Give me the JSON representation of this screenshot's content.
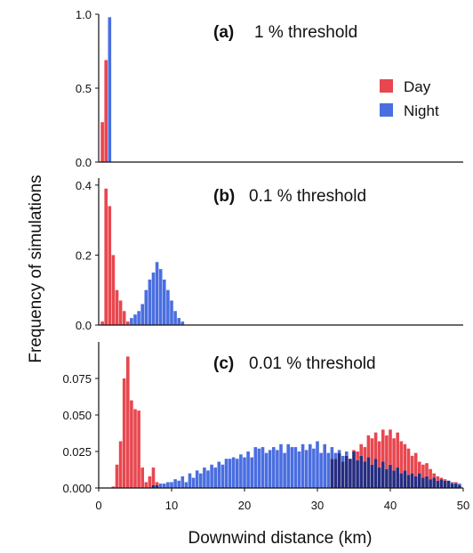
{
  "chart_data": {
    "type": "bar",
    "shared_xlabel": "Downwind distance (km)",
    "shared_ylabel": "Frequency of simulations",
    "xlim": [
      0,
      50
    ],
    "xticks": [
      0,
      10,
      20,
      30,
      40,
      50
    ],
    "legend": {
      "placement": "top-right of panel (a)",
      "entries": [
        {
          "name": "Day",
          "color": "#e8474f"
        },
        {
          "name": "Night",
          "color": "#4a6ee0"
        }
      ]
    },
    "colors": {
      "day": "#e8474f",
      "night": "#4a6ee0",
      "overlap": "#262d80"
    },
    "panels": [
      {
        "label": "(a)",
        "title": "1 % threshold",
        "ylim": [
          0,
          1.0
        ],
        "yticks": [
          {
            "value": 0.0,
            "label": "0.0"
          },
          {
            "value": 0.5,
            "label": "0.5"
          },
          {
            "value": 1.0,
            "label": "1.0"
          }
        ],
        "series": [
          {
            "name": "Day",
            "x": [
              0.5,
              1.0
            ],
            "y": [
              0.27,
              0.69
            ]
          },
          {
            "name": "Night",
            "x": [
              1.5
            ],
            "y": [
              0.98
            ]
          }
        ]
      },
      {
        "label": "(b)",
        "title": "0.1 % threshold",
        "ylim": [
          0,
          0.42
        ],
        "yticks": [
          {
            "value": 0.0,
            "label": "0.0"
          },
          {
            "value": 0.2,
            "label": "0.2"
          },
          {
            "value": 0.4,
            "label": "0.4"
          }
        ],
        "series": [
          {
            "name": "Day",
            "x": [
              0.5,
              1.0,
              1.5,
              2.0,
              2.5,
              3.0,
              3.5,
              4.0
            ],
            "y": [
              0.01,
              0.39,
              0.34,
              0.2,
              0.1,
              0.07,
              0.04,
              0.01
            ]
          },
          {
            "name": "Night",
            "x": [
              4.5,
              5.0,
              5.5,
              6.0,
              6.5,
              7.0,
              7.5,
              8.0,
              8.5,
              9.0,
              9.5,
              10.0,
              10.5,
              11.0,
              11.5
            ],
            "y": [
              0.02,
              0.03,
              0.04,
              0.06,
              0.1,
              0.13,
              0.15,
              0.18,
              0.16,
              0.13,
              0.1,
              0.07,
              0.04,
              0.02,
              0.01
            ]
          }
        ]
      },
      {
        "label": "(c)",
        "title": "0.01 % threshold",
        "ylim": [
          0,
          0.1
        ],
        "yticks": [
          {
            "value": 0.0,
            "label": "0.000"
          },
          {
            "value": 0.025,
            "label": "0.025"
          },
          {
            "value": 0.05,
            "label": "0.050"
          },
          {
            "value": 0.075,
            "label": "0.075"
          }
        ],
        "day": {
          "x": [
            2.0,
            2.5,
            3.0,
            3.5,
            4.0,
            4.5,
            5.0,
            5.5,
            6.0,
            6.5,
            7.0,
            7.5,
            8.0,
            32.0,
            32.5,
            33.0,
            33.5,
            34.0,
            34.5,
            35.0,
            35.5,
            36.0,
            36.5,
            37.0,
            37.5,
            38.0,
            38.5,
            39.0,
            39.5,
            40.0,
            40.5,
            41.0,
            41.5,
            42.0,
            42.5,
            43.0,
            43.5,
            44.0,
            44.5,
            45.0,
            45.5,
            46.0,
            46.5,
            47.0,
            47.5,
            48.0,
            48.5,
            49.0,
            49.5
          ],
          "y": [
            0.001,
            0.016,
            0.032,
            0.075,
            0.09,
            0.06,
            0.054,
            0.053,
            0.014,
            0.004,
            0.008,
            0.014,
            0.004,
            0.02,
            0.02,
            0.024,
            0.018,
            0.022,
            0.02,
            0.026,
            0.025,
            0.03,
            0.028,
            0.036,
            0.034,
            0.038,
            0.032,
            0.04,
            0.036,
            0.04,
            0.034,
            0.038,
            0.032,
            0.03,
            0.027,
            0.022,
            0.024,
            0.018,
            0.016,
            0.017,
            0.013,
            0.01,
            0.008,
            0.007,
            0.006,
            0.005,
            0.003,
            0.004,
            0.002
          ]
        },
        "night": {
          "x": [
            7.5,
            8.0,
            8.5,
            9.0,
            9.5,
            10.0,
            10.5,
            11.0,
            11.5,
            12.0,
            12.5,
            13.0,
            13.5,
            14.0,
            14.5,
            15.0,
            15.5,
            16.0,
            16.5,
            17.0,
            17.5,
            18.0,
            18.5,
            19.0,
            19.5,
            20.0,
            20.5,
            21.0,
            21.5,
            22.0,
            22.5,
            23.0,
            23.5,
            24.0,
            24.5,
            25.0,
            25.5,
            26.0,
            26.5,
            27.0,
            27.5,
            28.0,
            28.5,
            29.0,
            29.5,
            30.0,
            30.5,
            31.0,
            31.5,
            32.0,
            32.5,
            33.0,
            33.5,
            34.0,
            34.5,
            35.0,
            35.5,
            36.0,
            36.5,
            37.0,
            37.5,
            38.0,
            38.5,
            39.0,
            39.5,
            40.0,
            40.5,
            41.0,
            41.5,
            42.0,
            42.5,
            43.0,
            43.5,
            44.0,
            44.5,
            45.0,
            45.5,
            46.0,
            46.5,
            47.0,
            47.5,
            48.0,
            48.5,
            49.0,
            49.5
          ],
          "y": [
            0.002,
            0.002,
            0.003,
            0.003,
            0.004,
            0.004,
            0.006,
            0.005,
            0.008,
            0.004,
            0.01,
            0.007,
            0.012,
            0.01,
            0.014,
            0.012,
            0.016,
            0.014,
            0.018,
            0.016,
            0.02,
            0.02,
            0.021,
            0.02,
            0.023,
            0.021,
            0.025,
            0.021,
            0.028,
            0.027,
            0.028,
            0.024,
            0.026,
            0.028,
            0.026,
            0.03,
            0.024,
            0.03,
            0.028,
            0.028,
            0.025,
            0.03,
            0.026,
            0.03,
            0.027,
            0.032,
            0.024,
            0.03,
            0.024,
            0.028,
            0.024,
            0.026,
            0.022,
            0.025,
            0.02,
            0.025,
            0.019,
            0.022,
            0.018,
            0.021,
            0.016,
            0.02,
            0.014,
            0.018,
            0.013,
            0.016,
            0.012,
            0.014,
            0.01,
            0.012,
            0.009,
            0.01,
            0.008,
            0.01,
            0.007,
            0.008,
            0.006,
            0.007,
            0.005,
            0.006,
            0.005,
            0.005,
            0.004,
            0.003,
            0.003
          ]
        }
      }
    ]
  }
}
